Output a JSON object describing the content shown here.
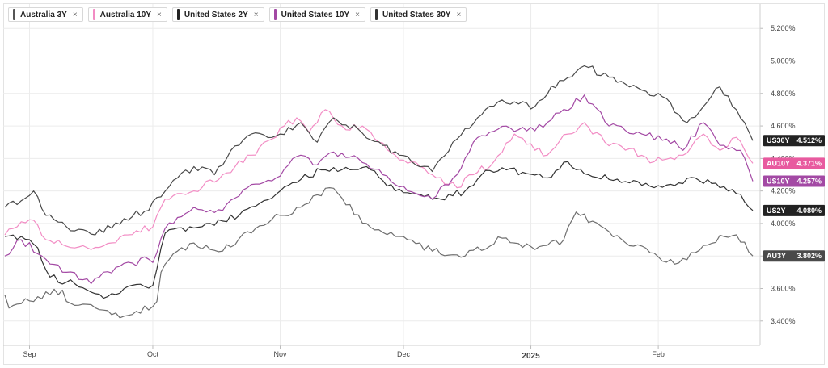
{
  "chart_data": {
    "type": "line",
    "ylim": [
      3.25,
      5.35
    ],
    "yticks": [
      "3.400%",
      "3.600%",
      "3.800%",
      "4.000%",
      "4.200%",
      "4.400%",
      "4.600%",
      "4.800%",
      "5.000%",
      "5.200%"
    ],
    "ytick_values": [
      3.4,
      3.6,
      3.8,
      4.0,
      4.2,
      4.4,
      4.6,
      4.8,
      5.0,
      5.2
    ],
    "x_dates": [
      "2024-08-26",
      "2025-02-24"
    ],
    "xticks": [
      {
        "label": "Sep",
        "date": "2024-09-01",
        "bold": false
      },
      {
        "label": "Oct",
        "date": "2024-10-01",
        "bold": false
      },
      {
        "label": "Nov",
        "date": "2024-11-01",
        "bold": false
      },
      {
        "label": "Dec",
        "date": "2024-12-01",
        "bold": false
      },
      {
        "label": "2025",
        "date": "2025-01-01",
        "bold": true
      },
      {
        "label": "Feb",
        "date": "2025-02-01",
        "bold": false
      }
    ],
    "grid": true,
    "legend": "top-left",
    "series": [
      {
        "name": "Australia 3Y",
        "color": "#6f6f6f",
        "tag": "AU3Y",
        "last_label": "3.802%",
        "tag_color": "#4a4a4a",
        "anchors": [
          [
            "2024-08-26",
            3.56
          ],
          [
            "2024-08-27",
            3.48
          ],
          [
            "2024-09-03",
            3.55
          ],
          [
            "2024-09-09",
            3.59
          ],
          [
            "2024-09-10",
            3.52
          ],
          [
            "2024-09-18",
            3.47
          ],
          [
            "2024-09-23",
            3.42
          ],
          [
            "2024-09-27",
            3.46
          ],
          [
            "2024-10-01",
            3.49
          ],
          [
            "2024-10-02",
            3.52
          ],
          [
            "2024-10-03",
            3.7
          ],
          [
            "2024-10-07",
            3.83
          ],
          [
            "2024-10-11",
            3.88
          ],
          [
            "2024-10-18",
            3.83
          ],
          [
            "2024-10-24",
            3.95
          ],
          [
            "2024-11-01",
            4.05
          ],
          [
            "2024-11-06",
            4.1
          ],
          [
            "2024-11-13",
            4.22
          ],
          [
            "2024-11-22",
            4.0
          ],
          [
            "2024-11-29",
            3.92
          ],
          [
            "2024-12-02",
            3.9
          ],
          [
            "2024-12-08",
            3.83
          ],
          [
            "2024-12-16",
            3.8
          ],
          [
            "2024-12-25",
            3.91
          ],
          [
            "2025-01-02",
            3.84
          ],
          [
            "2025-01-09",
            3.9
          ],
          [
            "2025-01-12",
            4.07
          ],
          [
            "2025-01-20",
            3.95
          ],
          [
            "2025-01-30",
            3.82
          ],
          [
            "2025-02-05",
            3.75
          ],
          [
            "2025-02-10",
            3.82
          ],
          [
            "2025-02-17",
            3.92
          ],
          [
            "2025-02-20",
            3.93
          ],
          [
            "2025-02-24",
            3.8
          ]
        ]
      },
      {
        "name": "Australia 10Y",
        "color": "#f28cc4",
        "tag": "AU10Y",
        "last_label": "4.371%",
        "tag_color": "#e85a9f",
        "anchors": [
          [
            "2024-08-26",
            3.93
          ],
          [
            "2024-08-29",
            3.98
          ],
          [
            "2024-09-02",
            4.02
          ],
          [
            "2024-09-05",
            3.9
          ],
          [
            "2024-09-10",
            3.86
          ],
          [
            "2024-09-16",
            3.84
          ],
          [
            "2024-09-25",
            3.93
          ],
          [
            "2024-10-01",
            3.98
          ],
          [
            "2024-10-02",
            4.05
          ],
          [
            "2024-10-04",
            4.15
          ],
          [
            "2024-10-11",
            4.2
          ],
          [
            "2024-10-18",
            4.3
          ],
          [
            "2024-10-25",
            4.42
          ],
          [
            "2024-10-30",
            4.52
          ],
          [
            "2024-11-02",
            4.6
          ],
          [
            "2024-11-05",
            4.65
          ],
          [
            "2024-11-08",
            4.56
          ],
          [
            "2024-11-12",
            4.7
          ],
          [
            "2024-11-16",
            4.6
          ],
          [
            "2024-11-22",
            4.58
          ],
          [
            "2024-11-25",
            4.5
          ],
          [
            "2024-11-29",
            4.42
          ],
          [
            "2024-12-03",
            4.38
          ],
          [
            "2024-12-08",
            4.3
          ],
          [
            "2024-12-14",
            4.22
          ],
          [
            "2024-12-18",
            4.3
          ],
          [
            "2024-12-23",
            4.38
          ],
          [
            "2024-12-28",
            4.55
          ],
          [
            "2025-01-05",
            4.42
          ],
          [
            "2025-01-10",
            4.55
          ],
          [
            "2025-01-14",
            4.62
          ],
          [
            "2025-01-19",
            4.5
          ],
          [
            "2025-01-25",
            4.46
          ],
          [
            "2025-01-31",
            4.38
          ],
          [
            "2025-02-07",
            4.42
          ],
          [
            "2025-02-12",
            4.55
          ],
          [
            "2025-02-16",
            4.45
          ],
          [
            "2025-02-20",
            4.53
          ],
          [
            "2025-02-24",
            4.37
          ]
        ]
      },
      {
        "name": "United States 2Y",
        "color": "#333333",
        "tag": "US2Y",
        "last_label": "4.080%",
        "tag_color": "#222222",
        "anchors": [
          [
            "2024-08-26",
            3.92
          ],
          [
            "2024-08-30",
            3.92
          ],
          [
            "2024-09-03",
            3.85
          ],
          [
            "2024-09-06",
            3.67
          ],
          [
            "2024-09-12",
            3.63
          ],
          [
            "2024-09-20",
            3.55
          ],
          [
            "2024-09-26",
            3.62
          ],
          [
            "2024-10-01",
            3.62
          ],
          [
            "2024-10-02",
            3.72
          ],
          [
            "2024-10-04",
            3.94
          ],
          [
            "2024-10-10",
            3.98
          ],
          [
            "2024-10-15",
            4.0
          ],
          [
            "2024-10-22",
            4.05
          ],
          [
            "2024-10-28",
            4.14
          ],
          [
            "2024-11-01",
            4.2
          ],
          [
            "2024-11-06",
            4.27
          ],
          [
            "2024-11-11",
            4.33
          ],
          [
            "2024-11-15",
            4.32
          ],
          [
            "2024-11-22",
            4.35
          ],
          [
            "2024-11-29",
            4.2
          ],
          [
            "2024-12-05",
            4.18
          ],
          [
            "2024-12-10",
            4.15
          ],
          [
            "2024-12-16",
            4.2
          ],
          [
            "2024-12-20",
            4.3
          ],
          [
            "2024-12-26",
            4.33
          ],
          [
            "2025-01-05",
            4.28
          ],
          [
            "2025-01-10",
            4.38
          ],
          [
            "2025-01-15",
            4.3
          ],
          [
            "2025-01-25",
            4.25
          ],
          [
            "2025-01-31",
            4.22
          ],
          [
            "2025-02-06",
            4.25
          ],
          [
            "2025-02-10",
            4.28
          ],
          [
            "2025-02-16",
            4.22
          ],
          [
            "2025-02-21",
            4.18
          ],
          [
            "2025-02-24",
            4.08
          ]
        ]
      },
      {
        "name": "United States 10Y",
        "color": "#a349a4",
        "tag": "US10Y",
        "last_label": "4.257%",
        "tag_color": "#a349a4",
        "anchors": [
          [
            "2024-08-26",
            3.8
          ],
          [
            "2024-08-30",
            3.9
          ],
          [
            "2024-09-04",
            3.8
          ],
          [
            "2024-09-10",
            3.7
          ],
          [
            "2024-09-16",
            3.63
          ],
          [
            "2024-09-22",
            3.73
          ],
          [
            "2024-09-30",
            3.78
          ],
          [
            "2024-10-01",
            3.76
          ],
          [
            "2024-10-02",
            3.82
          ],
          [
            "2024-10-04",
            3.97
          ],
          [
            "2024-10-11",
            4.1
          ],
          [
            "2024-10-18",
            4.08
          ],
          [
            "2024-10-25",
            4.24
          ],
          [
            "2024-10-31",
            4.28
          ],
          [
            "2024-11-03",
            4.36
          ],
          [
            "2024-11-06",
            4.42
          ],
          [
            "2024-11-10",
            4.36
          ],
          [
            "2024-11-14",
            4.44
          ],
          [
            "2024-11-20",
            4.4
          ],
          [
            "2024-11-26",
            4.3
          ],
          [
            "2024-12-02",
            4.2
          ],
          [
            "2024-12-08",
            4.15
          ],
          [
            "2024-12-14",
            4.3
          ],
          [
            "2024-12-18",
            4.5
          ],
          [
            "2024-12-24",
            4.58
          ],
          [
            "2025-01-02",
            4.57
          ],
          [
            "2025-01-08",
            4.68
          ],
          [
            "2025-01-14",
            4.79
          ],
          [
            "2025-01-20",
            4.6
          ],
          [
            "2025-01-28",
            4.55
          ],
          [
            "2025-02-03",
            4.52
          ],
          [
            "2025-02-07",
            4.45
          ],
          [
            "2025-02-12",
            4.62
          ],
          [
            "2025-02-16",
            4.48
          ],
          [
            "2025-02-21",
            4.45
          ],
          [
            "2025-02-24",
            4.26
          ]
        ]
      },
      {
        "name": "United States 30Y",
        "color": "#4a4a4a",
        "tag": "US30Y",
        "last_label": "4.512%",
        "tag_color": "#222222",
        "anchors": [
          [
            "2024-08-26",
            4.1
          ],
          [
            "2024-08-30",
            4.14
          ],
          [
            "2024-09-02",
            4.2
          ],
          [
            "2024-09-05",
            4.05
          ],
          [
            "2024-09-10",
            3.98
          ],
          [
            "2024-09-17",
            3.93
          ],
          [
            "2024-09-24",
            4.03
          ],
          [
            "2024-09-30",
            4.08
          ],
          [
            "2024-10-02",
            4.16
          ],
          [
            "2024-10-07",
            4.28
          ],
          [
            "2024-10-11",
            4.35
          ],
          [
            "2024-10-16",
            4.3
          ],
          [
            "2024-10-20",
            4.45
          ],
          [
            "2024-10-25",
            4.55
          ],
          [
            "2024-11-01",
            4.55
          ],
          [
            "2024-11-06",
            4.62
          ],
          [
            "2024-11-10",
            4.5
          ],
          [
            "2024-11-14",
            4.65
          ],
          [
            "2024-11-20",
            4.58
          ],
          [
            "2024-11-26",
            4.48
          ],
          [
            "2024-12-03",
            4.38
          ],
          [
            "2024-12-08",
            4.32
          ],
          [
            "2024-12-13",
            4.5
          ],
          [
            "2024-12-19",
            4.65
          ],
          [
            "2024-12-25",
            4.76
          ],
          [
            "2025-01-02",
            4.72
          ],
          [
            "2025-01-08",
            4.88
          ],
          [
            "2025-01-14",
            4.97
          ],
          [
            "2025-01-20",
            4.9
          ],
          [
            "2025-01-26",
            4.85
          ],
          [
            "2025-02-02",
            4.78
          ],
          [
            "2025-02-08",
            4.62
          ],
          [
            "2025-02-12",
            4.72
          ],
          [
            "2025-02-16",
            4.84
          ],
          [
            "2025-02-20",
            4.7
          ],
          [
            "2025-02-24",
            4.51
          ]
        ]
      }
    ]
  },
  "legend_items": [
    {
      "label": "Australia 3Y",
      "color": "#555555"
    },
    {
      "label": "Australia 10Y",
      "color": "#f28cc4"
    },
    {
      "label": "United States 2Y",
      "color": "#222222"
    },
    {
      "label": "United States 10Y",
      "color": "#a349a4"
    },
    {
      "label": "United States 30Y",
      "color": "#333333"
    }
  ],
  "remove_symbol": "×"
}
